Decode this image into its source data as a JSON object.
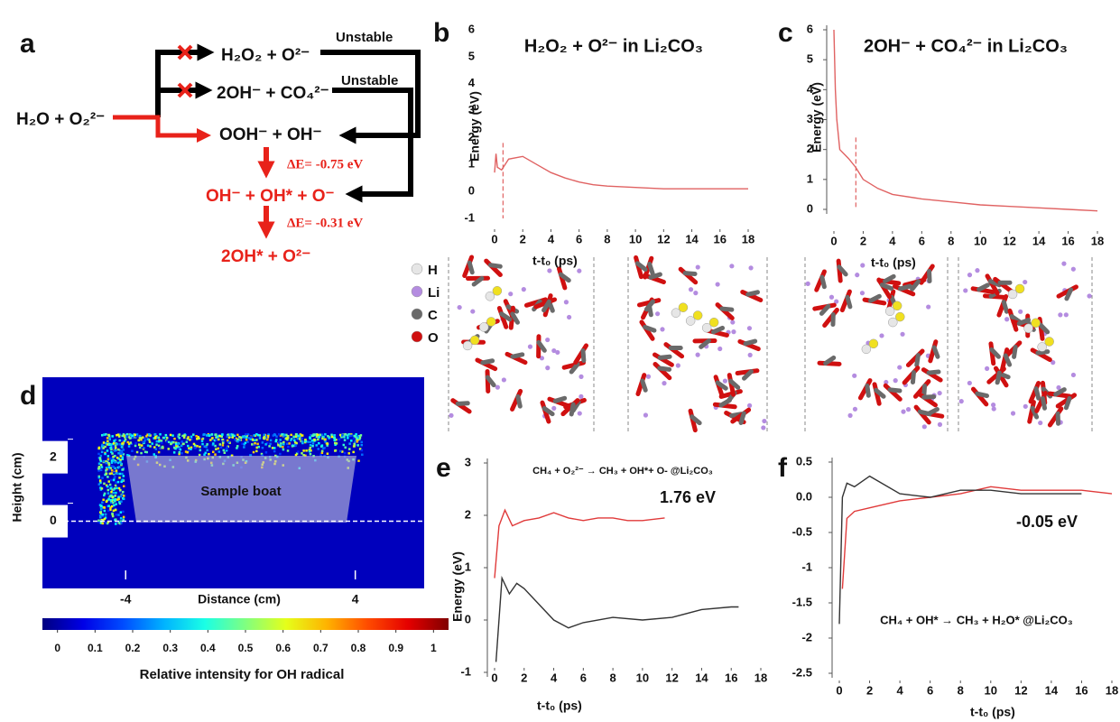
{
  "panel_labels": [
    "a",
    "b",
    "c",
    "d",
    "e",
    "f"
  ],
  "diagram": {
    "reactant": "H₂O + O₂²⁻",
    "paths": [
      {
        "product": "H₂O₂ + O²⁻",
        "note": "Unstable"
      },
      {
        "product": "2OH⁻ + CO₄²⁻",
        "note": "Unstable"
      },
      {
        "product": "OOH⁻ + OH⁻"
      }
    ],
    "steps": [
      {
        "energy": "ΔE= -0.75 eV",
        "product": "OH⁻ + OH* + O⁻"
      },
      {
        "energy": "ΔE= -0.31 eV",
        "product": "2OH* + O²⁻"
      }
    ]
  },
  "atom_legend": [
    {
      "label": "H",
      "color": "#e6e6e6"
    },
    {
      "label": "Li",
      "color": "#b48ce0"
    },
    {
      "label": "C",
      "color": "#6a6a6a"
    },
    {
      "label": "O",
      "color": "#d01010"
    }
  ],
  "chart_data": [
    {
      "type": "line",
      "title": "H₂O₂ + O²⁻ in Li₂CO₃",
      "ylabel": "Energy (eV)",
      "xlabel": "t-t₀ (ps)",
      "xlim": [
        0,
        18
      ],
      "ylim": [
        -1,
        6
      ],
      "xticks": [
        0,
        2,
        4,
        6,
        8,
        10,
        12,
        14,
        16,
        18
      ],
      "yticks": [
        -1,
        0,
        1,
        2,
        3,
        4,
        5,
        6
      ],
      "marker_x": 0.6,
      "series": [
        {
          "color": "#e06262",
          "x": [
            0,
            0.1,
            0.2,
            0.5,
            1,
            1.5,
            2,
            3,
            4,
            5,
            6,
            7,
            8,
            10,
            12,
            14,
            16,
            18
          ],
          "values": [
            0.7,
            1.4,
            0.9,
            0.8,
            1.2,
            1.25,
            1.3,
            1.0,
            0.7,
            0.5,
            0.35,
            0.25,
            0.2,
            0.15,
            0.1,
            0.1,
            0.1,
            0.1
          ]
        }
      ]
    },
    {
      "type": "line",
      "title": "2OH⁻ + CO₄²⁻ in Li₂CO₃",
      "ylabel": "Energy (eV)",
      "xlabel": "t-t₀ (ps)",
      "xlim": [
        0,
        18
      ],
      "ylim": [
        0,
        6
      ],
      "xticks": [
        0,
        2,
        4,
        6,
        8,
        10,
        12,
        14,
        16,
        18
      ],
      "yticks": [
        0,
        1,
        2,
        3,
        4,
        5,
        6
      ],
      "marker_x": 1.5,
      "series": [
        {
          "color": "#e06262",
          "x": [
            0,
            0.1,
            0.2,
            0.4,
            1,
            1.5,
            2,
            3,
            4,
            6,
            8,
            10,
            12,
            14,
            16,
            18
          ],
          "values": [
            6,
            4,
            3,
            2,
            1.7,
            1.4,
            1.0,
            0.7,
            0.5,
            0.35,
            0.25,
            0.15,
            0.1,
            0.05,
            0,
            -0.05
          ]
        }
      ]
    },
    {
      "type": "heatmap",
      "xlabel": "Distance (cm)",
      "ylabel": "Height (cm)",
      "annotation": "Sample boat",
      "xlim": [
        -6.9,
        6.4
      ],
      "ylim": [
        -2.1,
        4.5
      ],
      "xticks": [
        -4,
        4
      ],
      "yticks": [
        0,
        2
      ],
      "colormap": "jet",
      "colorbar": {
        "label": "Relative intensity for OH radical",
        "lim": [
          -0.04,
          1.04
        ],
        "ticks": [
          0,
          0.1,
          0.2,
          0.3,
          0.4,
          0.5,
          0.6,
          0.7,
          0.8,
          0.9,
          1
        ]
      }
    },
    {
      "type": "line",
      "title": "CH₄ + O₂²⁻ → CH₃ + OH*+ O- @Li₂CO₃",
      "ylabel": "Energy (eV)",
      "xlabel": "t-t₀ (ps)",
      "annotation": "1.76 eV",
      "xlim": [
        0,
        18
      ],
      "ylim": [
        -1,
        3
      ],
      "xticks": [
        0,
        2,
        4,
        6,
        8,
        10,
        12,
        14,
        16,
        18
      ],
      "yticks": [
        -1,
        0,
        1,
        2,
        3
      ],
      "series": [
        {
          "color": "#e03a3a",
          "x": [
            0,
            0.3,
            0.7,
            1.2,
            2,
            3,
            4,
            5,
            6,
            7,
            8,
            9,
            10,
            11.5
          ],
          "values": [
            0.8,
            1.8,
            2.1,
            1.8,
            1.9,
            1.95,
            2.05,
            1.95,
            1.9,
            1.95,
            1.95,
            1.9,
            1.9,
            1.95
          ]
        },
        {
          "color": "#333333",
          "x": [
            0.1,
            0.5,
            1,
            1.5,
            2,
            3,
            4,
            5,
            6,
            8,
            10,
            12,
            14,
            16,
            16.5
          ],
          "values": [
            -0.8,
            0.8,
            0.5,
            0.7,
            0.6,
            0.3,
            0.0,
            -0.15,
            -0.05,
            0.05,
            0.0,
            0.05,
            0.2,
            0.25,
            0.25
          ]
        }
      ]
    },
    {
      "type": "line",
      "title": "CH₄ + OH* → CH₃ + H₂O* @Li₂CO₃",
      "xlabel": "t-t₀ (ps)",
      "annotation": "-0.05 eV",
      "xlim": [
        0,
        18
      ],
      "ylim": [
        -2.5,
        0.5
      ],
      "xticks": [
        0,
        2,
        4,
        6,
        8,
        10,
        12,
        14,
        16,
        18
      ],
      "yticks": [
        -2.5,
        -2,
        -1.5,
        -1,
        -0.5,
        {
          "value": 0,
          "label": "0.0"
        },
        0.5
      ],
      "series": [
        {
          "color": "#e03a3a",
          "x": [
            0.2,
            0.5,
            1,
            2,
            4,
            6,
            8,
            10,
            12,
            14,
            16,
            18
          ],
          "values": [
            -1.3,
            -0.3,
            -0.2,
            -0.15,
            -0.05,
            0.0,
            0.05,
            0.15,
            0.1,
            0.1,
            0.1,
            0.05
          ]
        },
        {
          "color": "#333333",
          "x": [
            0,
            0.2,
            0.5,
            1,
            2,
            4,
            6,
            8,
            10,
            12,
            14,
            16
          ],
          "values": [
            -1.8,
            0.0,
            0.2,
            0.15,
            0.3,
            0.05,
            0.0,
            0.1,
            0.1,
            0.05,
            0.05,
            0.05
          ]
        }
      ]
    }
  ]
}
